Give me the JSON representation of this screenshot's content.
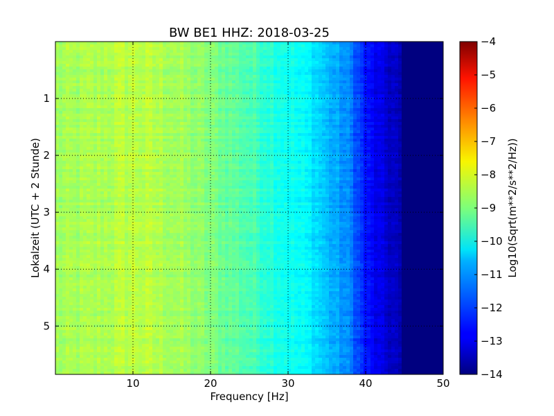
{
  "chart_data": {
    "type": "heatmap",
    "title": "BW BE1 HHZ: 2018-03-25",
    "xlabel": "Frequency [Hz]",
    "ylabel": "Lokalzeit (UTC + 2 Stunde)",
    "xlim": [
      0,
      50
    ],
    "ylim": [
      5.85,
      0
    ],
    "x_ticks": [
      10,
      20,
      30,
      40,
      50
    ],
    "y_ticks": [
      1,
      2,
      3,
      4,
      5
    ],
    "grid": true,
    "colorbar": {
      "label": "Log10(Sqrt(m**2/s**2/Hz))",
      "colormap": "jet",
      "range": [
        -14,
        -4
      ],
      "ticks": [
        -4,
        -5,
        -6,
        -7,
        -8,
        -9,
        -10,
        -11,
        -12,
        -13,
        -14
      ]
    },
    "spectral_profile": {
      "frequency_hz": [
        0,
        5,
        10,
        15,
        20,
        25,
        30,
        33,
        35,
        38,
        40,
        42,
        44,
        45,
        50
      ],
      "log10_amplitude": [
        -8.7,
        -8.6,
        -8.4,
        -8.6,
        -9.0,
        -9.5,
        -10.1,
        -10.4,
        -10.9,
        -11.5,
        -12.6,
        -13.1,
        -13.4,
        -14.0,
        -14.0
      ]
    }
  },
  "colors": {
    "jet_low": "#00007f",
    "jet_high": "#7f0000"
  }
}
